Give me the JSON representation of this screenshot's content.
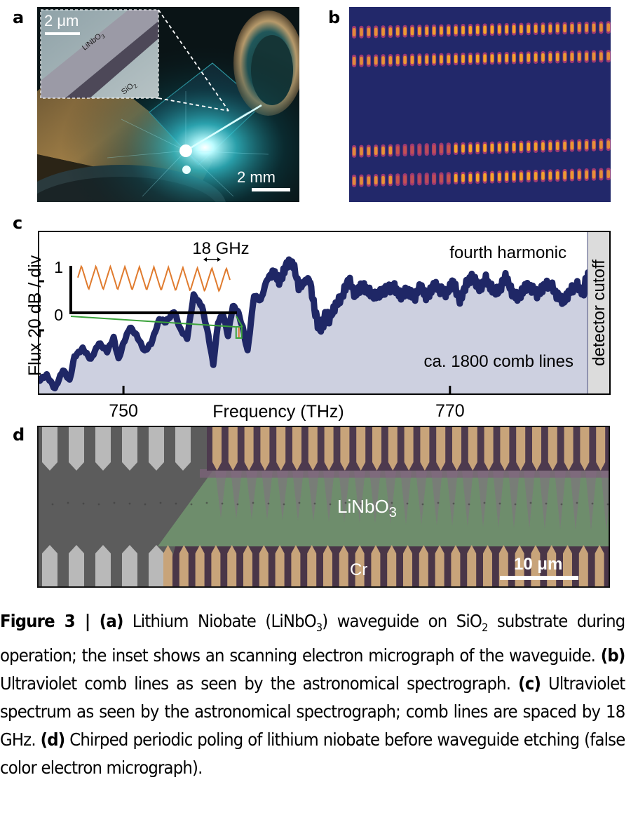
{
  "figure": {
    "panels": {
      "a": {
        "label": "a",
        "inset_scale_bar": "2 μm",
        "inset_material_top": "LiNbO",
        "inset_material_top_sub": "3",
        "inset_material_bottom": "SiO",
        "inset_material_bottom_sub": "2",
        "scale_bar": "2 mm"
      },
      "b": {
        "label": "b",
        "description": "Ultraviolet comb lines on spectrograph detector",
        "rows": 4,
        "colors": {
          "background": "#22286a",
          "line_core": "#f5a62a",
          "line_edge": "#b33c73"
        }
      },
      "c": {
        "label": "c",
        "annotation_harmonic": "fourth harmonic",
        "annotation_count": "ca. 1800 comb lines",
        "annotation_cutoff": "detector cutoff",
        "annotation_spacing": "18 GHz",
        "inset_y_ticks": [
          "1",
          "0"
        ]
      },
      "d": {
        "label": "d",
        "material_label": "LiNbO",
        "material_label_sub": "3",
        "electrode_label": "Cr",
        "scale_bar": "10 μm"
      }
    },
    "caption": {
      "figure_label": "Figure 3 |",
      "a_tag": "(a)",
      "a_text_1": " Lithium Niobate (LiNbO",
      "a_sub_1": "3",
      "a_text_2": ") waveguide on SiO",
      "a_sub_2": "2",
      "a_text_3": " substrate during operation; the inset shows an scanning electron micrograph of the waveguide. ",
      "b_tag": "(b)",
      "b_text": " Ultraviolet comb lines as seen by the astronomical spectrograph. ",
      "c_tag": "(c)",
      "c_text": " Ultraviolet spectrum as seen by the astronomical spectrograph; comb lines are spaced by 18 GHz. ",
      "d_tag": "(d)",
      "d_text": " Chirped periodic poling of lithium niobate before waveguide etching (false color electron micrograph)."
    }
  },
  "chart_data": {
    "type": "area",
    "title": "",
    "xlabel": "Frequency (THz)",
    "ylabel": "Flux 20 dB / div",
    "x_ticks": [
      750,
      770
    ],
    "xlim": [
      744.8,
      779.8
    ],
    "y_ticks_div": [
      1,
      2
    ],
    "ylim_div": [
      0,
      3.3
    ],
    "detector_cutoff_THz": 778.5,
    "series": [
      {
        "name": "fourth harmonic spectrum",
        "color": "#1f2766",
        "fill": "#cdd0e0",
        "x": [
          744.8,
          745.3,
          745.8,
          746.3,
          746.7,
          747.0,
          747.5,
          748.0,
          748.5,
          749.0,
          749.4,
          749.7,
          750.0,
          750.4,
          750.8,
          751.3,
          751.7,
          752.2,
          752.6,
          753.1,
          753.5,
          753.9,
          754.3,
          754.8,
          755.2,
          755.5,
          755.8,
          756.1,
          756.4,
          756.7,
          757.0,
          757.3,
          757.6,
          758.0,
          758.4,
          758.8,
          759.2,
          759.6,
          760.0,
          760.4,
          760.8,
          761.1,
          761.4,
          761.7,
          762.0,
          762.3,
          762.6,
          763.0,
          763.4,
          763.8,
          764.2,
          764.6,
          765.0,
          765.4,
          765.8,
          766.2,
          766.6,
          767.0,
          767.4,
          767.8,
          768.2,
          768.6,
          769.0,
          769.4,
          769.8,
          770.2,
          770.6,
          771.0,
          771.4,
          771.8,
          772.2,
          772.6,
          773.0,
          773.4,
          773.8,
          774.2,
          774.6,
          775.0,
          775.4,
          775.8,
          776.2,
          776.6,
          777.0,
          777.4,
          777.8,
          778.2,
          778.5
        ],
        "y_div": [
          0.15,
          0.25,
          0.0,
          0.35,
          0.15,
          0.6,
          0.75,
          0.55,
          0.85,
          0.7,
          0.95,
          0.55,
          0.85,
          1.15,
          1.0,
          0.7,
          0.85,
          1.3,
          1.25,
          1.45,
          1.1,
          0.95,
          1.75,
          1.55,
          1.0,
          0.45,
          1.25,
          1.4,
          1.0,
          1.55,
          1.45,
          1.15,
          0.7,
          1.75,
          1.65,
          2.05,
          2.2,
          1.95,
          2.3,
          2.35,
          1.9,
          2.0,
          2.05,
          1.5,
          1.1,
          1.3,
          1.35,
          1.6,
          1.7,
          2.0,
          1.75,
          2.0,
          1.85,
          1.7,
          1.75,
          1.9,
          1.95,
          1.75,
          1.8,
          1.65,
          1.95,
          1.75,
          1.95,
          1.8,
          1.75,
          2.05,
          1.7,
          1.95,
          2.05,
          1.85,
          2.1,
          1.9,
          1.8,
          2.05,
          1.8,
          1.75,
          1.95,
          1.85,
          1.7,
          1.95,
          2.0,
          1.75,
          1.6,
          1.8,
          1.95,
          1.85,
          2.15
        ]
      }
    ],
    "inset": {
      "type": "line",
      "xlabel": "",
      "ylabel": "",
      "y_ticks": [
        0,
        1
      ],
      "ylim": [
        0,
        1
      ],
      "color": "#e07b2e",
      "periods": 10.5,
      "y_max": 1.0,
      "y_min": 0.5,
      "spacing_label": "18 GHz",
      "zoom_source_THz": 757.2
    }
  }
}
